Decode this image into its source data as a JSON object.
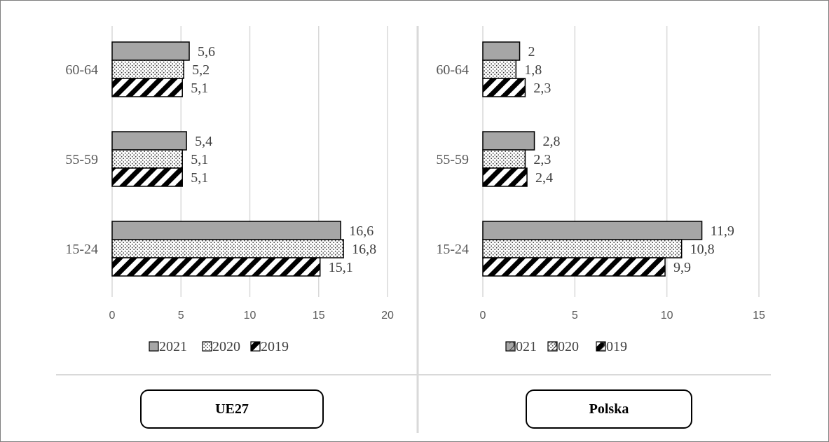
{
  "chart_data": [
    {
      "type": "bar",
      "orientation": "horizontal",
      "categories": [
        "15-24",
        "55-59",
        "60-64"
      ],
      "series": [
        {
          "name": "2021",
          "values": [
            16.6,
            5.4,
            5.6
          ],
          "labels": [
            "16,6",
            "5,4",
            "5,6"
          ]
        },
        {
          "name": "2020",
          "values": [
            16.8,
            5.1,
            5.2
          ],
          "labels": [
            "16,8",
            "5,1",
            "5,2"
          ]
        },
        {
          "name": "2019",
          "values": [
            15.1,
            5.1,
            5.1
          ],
          "labels": [
            "15,1",
            "5,1",
            "5,1"
          ]
        }
      ],
      "xlim": [
        0,
        20
      ],
      "xticks": [
        0,
        5,
        10,
        15,
        20
      ],
      "legend": [
        "2021",
        "2020",
        "2019"
      ],
      "legend_position": "bottom",
      "grid": true,
      "region_label": "UE27"
    },
    {
      "type": "bar",
      "orientation": "horizontal",
      "categories": [
        "15-24",
        "55-59",
        "60-64"
      ],
      "series": [
        {
          "name": "2021",
          "values": [
            11.9,
            2.8,
            2
          ],
          "labels": [
            "11,9",
            "2,8",
            "2"
          ]
        },
        {
          "name": "2020",
          "values": [
            10.8,
            2.3,
            1.8
          ],
          "labels": [
            "10,8",
            "2,3",
            "1,8"
          ]
        },
        {
          "name": "2019",
          "values": [
            9.9,
            2.4,
            2.3
          ],
          "labels": [
            "9,9",
            "2,4",
            "2,3"
          ]
        }
      ],
      "xlim": [
        0,
        15
      ],
      "xticks": [
        0,
        5,
        10,
        15
      ],
      "legend": [
        "2021",
        "2020",
        "2019"
      ],
      "legend_position": "bottom",
      "grid": true,
      "region_label": "Polska"
    }
  ],
  "colors": {
    "series_2021": "#a6a6a6",
    "series_2020": "#ffffff",
    "series_2019": "#ffffff",
    "gridline": "#d9d9d9",
    "text": "#595959"
  },
  "series_patterns": [
    "solid-gray",
    "dotted-grid",
    "diagonal-stripes"
  ]
}
